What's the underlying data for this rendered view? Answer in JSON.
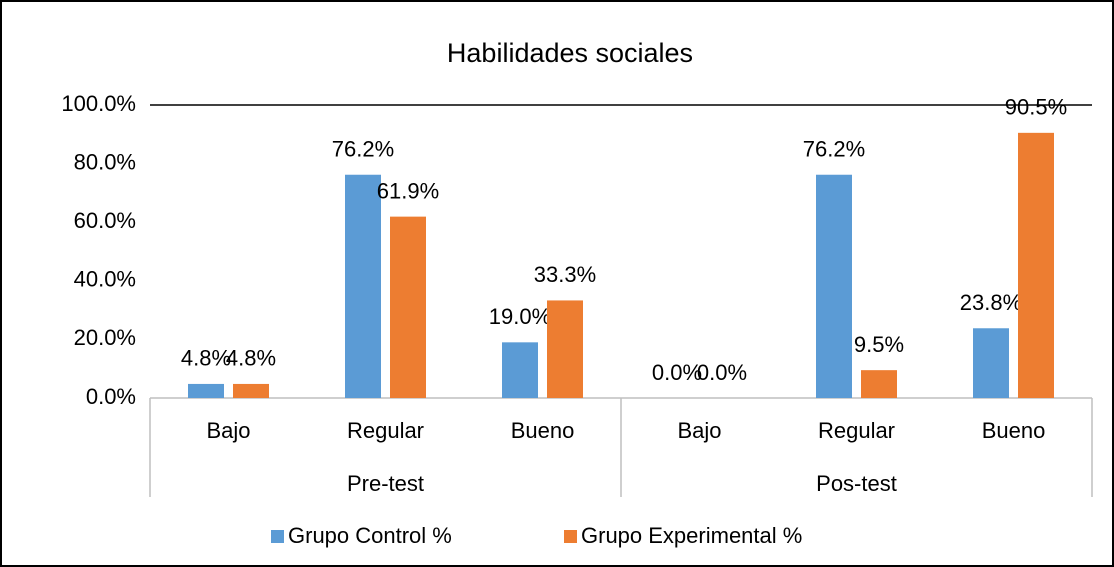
{
  "chart_data": {
    "type": "bar",
    "title": "Habilidades sociales",
    "categories": [
      "Bajo",
      "Regular",
      "Bueno",
      "Bajo",
      "Regular",
      "Bueno"
    ],
    "groups": [
      "Pre-test",
      "Pos-test"
    ],
    "series": [
      {
        "name": "Grupo Control %",
        "color": "#5b9bd5",
        "values": [
          4.8,
          76.2,
          19.0,
          0,
          76.2,
          23.8
        ],
        "value_labels": [
          "4.8%",
          "76.2%",
          "19.0%",
          "0.0%",
          "76.2%",
          "23.8%"
        ]
      },
      {
        "name": "Grupo Experimental %",
        "color": "#ed7d31",
        "values": [
          4.8,
          61.9,
          33.3,
          0,
          9.5,
          90.5
        ],
        "value_labels": [
          "4.8%",
          "61.9%",
          "33.3%",
          "0.0%",
          "9.5%",
          "90.5%"
        ]
      }
    ],
    "ylim": [
      0,
      100
    ],
    "yticks": [
      {
        "value": 0,
        "label": "0.0%"
      },
      {
        "value": 20,
        "label": "20.0%"
      },
      {
        "value": 40,
        "label": "40.0%"
      },
      {
        "value": 60,
        "label": "60.0%"
      },
      {
        "value": 80,
        "label": "80.0%"
      },
      {
        "value": 100,
        "label": "100.0%"
      }
    ],
    "grid": false,
    "legend": "bottom"
  }
}
